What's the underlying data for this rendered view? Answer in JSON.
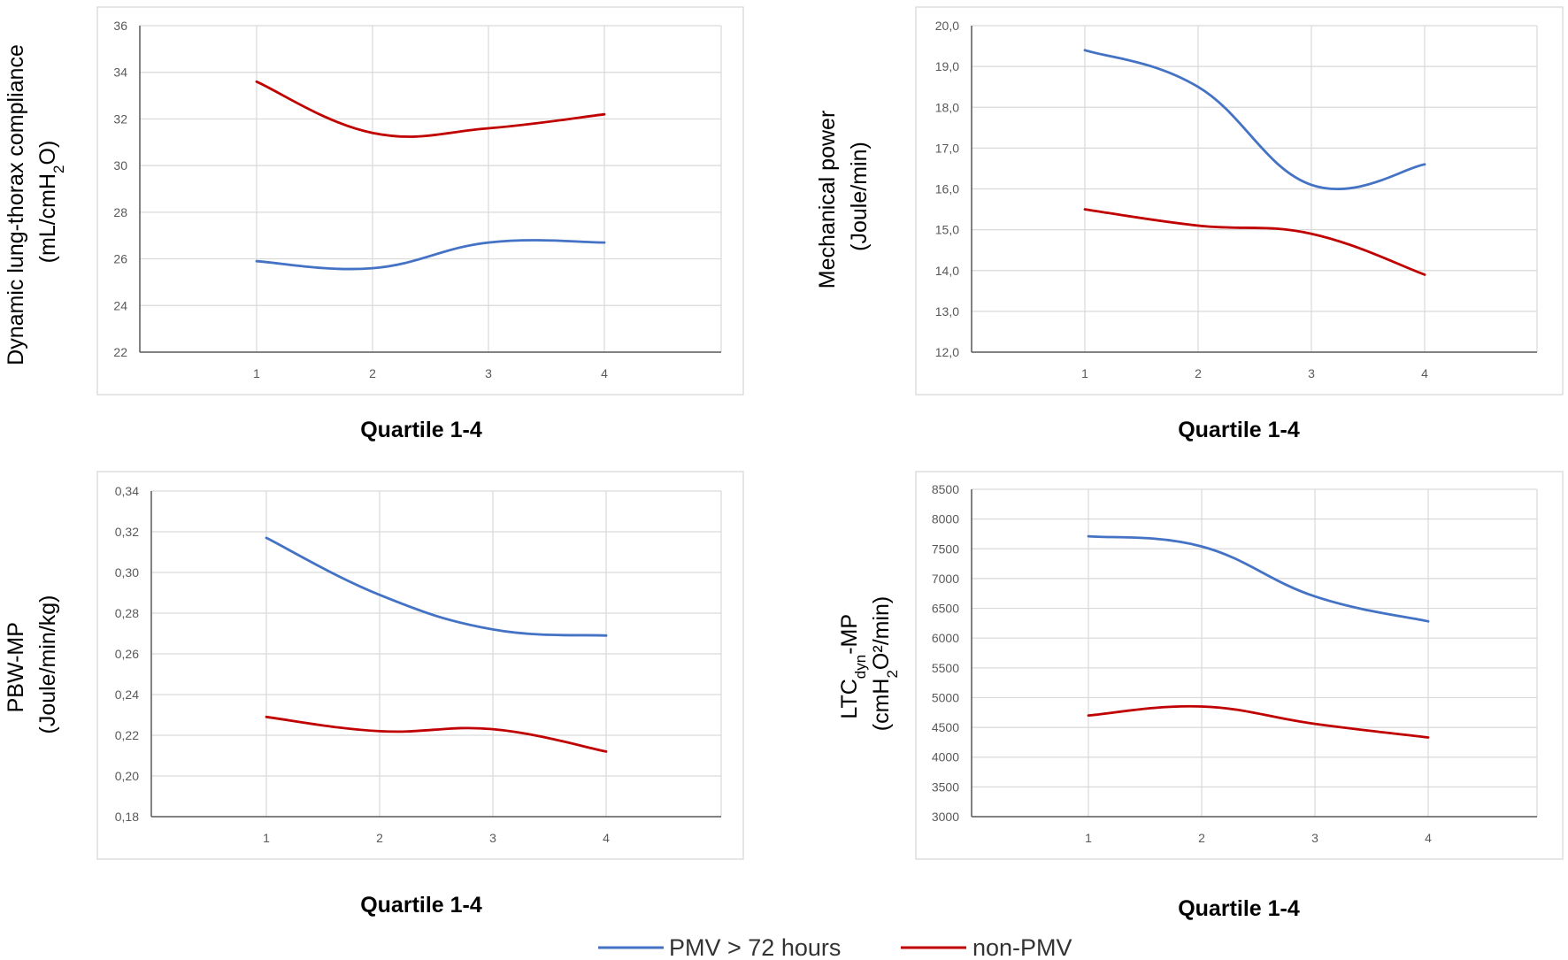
{
  "colors": {
    "pmv": "#4472c4",
    "non_pmv": "#c00000"
  },
  "legend": [
    {
      "label": "PMV > 72 hours",
      "color": "#4472c4"
    },
    {
      "label": "non-PMV",
      "color": "#c00000"
    }
  ],
  "chart_data": [
    {
      "type": "line",
      "xlabel": "Quartile 1-4",
      "ylabel_line1": "Dynamic lung-thorax compliance",
      "ylabel_line2": {
        "pre": "(mL/cmH",
        "sub": "2",
        "post": "O)"
      },
      "categories": [
        "1",
        "2",
        "3",
        "4"
      ],
      "ylim": [
        22,
        36
      ],
      "yticks": [
        "22",
        "24",
        "26",
        "28",
        "30",
        "32",
        "34",
        "36"
      ],
      "series": [
        {
          "name": "PMV > 72 hours",
          "values": [
            25.9,
            25.6,
            26.7,
            26.7
          ]
        },
        {
          "name": "non-PMV",
          "values": [
            33.6,
            31.4,
            31.6,
            32.2
          ]
        }
      ]
    },
    {
      "type": "line",
      "xlabel": "Quartile 1-4",
      "ylabel_line1": "Mechanical power",
      "ylabel_line2": "(Joule/min)",
      "categories": [
        "1",
        "2",
        "3",
        "4"
      ],
      "ylim": [
        12,
        20
      ],
      "yticks": [
        "12,0",
        "13,0",
        "14,0",
        "15,0",
        "16,0",
        "17,0",
        "18,0",
        "19,0",
        "20,0"
      ],
      "series": [
        {
          "name": "PMV > 72 hours",
          "values": [
            19.4,
            18.5,
            16.1,
            16.6
          ]
        },
        {
          "name": "non-PMV",
          "values": [
            15.5,
            15.1,
            14.9,
            13.9
          ]
        }
      ]
    },
    {
      "type": "line",
      "xlabel": "Quartile 1-4",
      "ylabel_line1": "PBW-MP",
      "ylabel_line2": "(Joule/min/kg)",
      "categories": [
        "1",
        "2",
        "3",
        "4"
      ],
      "ylim": [
        0.18,
        0.34
      ],
      "yticks": [
        "0,18",
        "0,20",
        "0,22",
        "0,24",
        "0,26",
        "0,28",
        "0,30",
        "0,32",
        "0,34"
      ],
      "series": [
        {
          "name": "PMV > 72 hours",
          "values": [
            0.317,
            0.289,
            0.272,
            0.269
          ]
        },
        {
          "name": "non-PMV",
          "values": [
            0.229,
            0.222,
            0.223,
            0.212
          ]
        }
      ]
    },
    {
      "type": "line",
      "xlabel": "Quartile 1-4",
      "ylabel_line1": {
        "pre": "LTC",
        "sub": "dyn",
        "post": "-MP"
      },
      "ylabel_line2": {
        "pre": "(cmH",
        "sub": "2",
        "post": "O²/min)"
      },
      "categories": [
        "1",
        "2",
        "3",
        "4"
      ],
      "ylim": [
        3000,
        8500
      ],
      "yticks": [
        "3000",
        "3500",
        "4000",
        "4500",
        "5000",
        "5500",
        "6000",
        "6500",
        "7000",
        "7500",
        "8000",
        "8500"
      ],
      "series": [
        {
          "name": "PMV > 72 hours",
          "values": [
            7710,
            7540,
            6700,
            6280
          ]
        },
        {
          "name": "non-PMV",
          "values": [
            4700,
            4850,
            4560,
            4330
          ]
        }
      ]
    }
  ]
}
